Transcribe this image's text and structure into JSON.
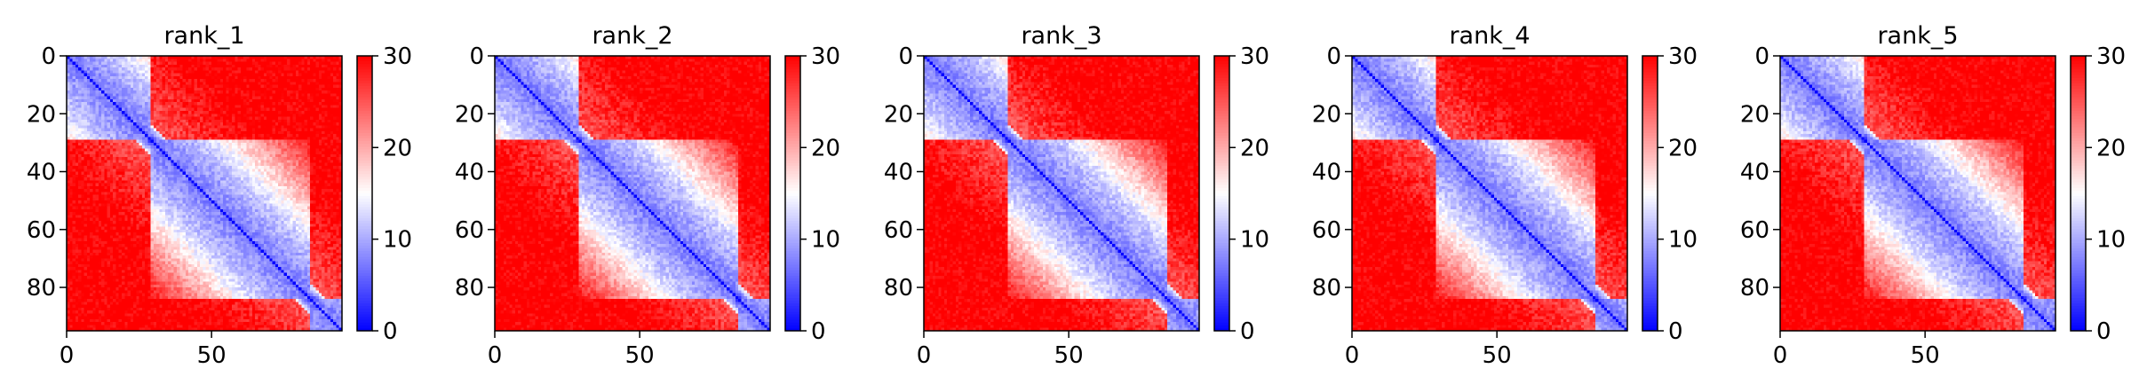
{
  "figure": {
    "background": "#ffffff"
  },
  "colormap": {
    "name": "bwr",
    "low": "#0000ff",
    "mid": "#ffffff",
    "high": "#ff0000"
  },
  "chart_data": [
    {
      "type": "heatmap",
      "title": "rank_1",
      "n": 95,
      "xticks": [
        0,
        50
      ],
      "yticks": [
        0,
        20,
        40,
        60,
        80
      ],
      "colorbar": {
        "min": 0,
        "max": 30,
        "ticks": [
          0,
          10,
          20,
          30
        ]
      },
      "domains": [
        [
          0,
          29
        ],
        [
          29,
          84
        ],
        [
          84,
          95
        ]
      ],
      "intra_distance": 5,
      "inter_distance": 28
    },
    {
      "type": "heatmap",
      "title": "rank_2",
      "n": 95,
      "xticks": [
        0,
        50
      ],
      "yticks": [
        0,
        20,
        40,
        60,
        80
      ],
      "colorbar": {
        "min": 0,
        "max": 30,
        "ticks": [
          0,
          10,
          20,
          30
        ]
      },
      "domains": [
        [
          0,
          29
        ],
        [
          29,
          84
        ],
        [
          84,
          95
        ]
      ],
      "intra_distance": 5,
      "inter_distance": 28
    },
    {
      "type": "heatmap",
      "title": "rank_3",
      "n": 95,
      "xticks": [
        0,
        50
      ],
      "yticks": [
        0,
        20,
        40,
        60,
        80
      ],
      "colorbar": {
        "min": 0,
        "max": 30,
        "ticks": [
          0,
          10,
          20,
          30
        ]
      },
      "domains": [
        [
          0,
          29
        ],
        [
          29,
          84
        ],
        [
          84,
          95
        ]
      ],
      "intra_distance": 5,
      "inter_distance": 28
    },
    {
      "type": "heatmap",
      "title": "rank_4",
      "n": 95,
      "xticks": [
        0,
        50
      ],
      "yticks": [
        0,
        20,
        40,
        60,
        80
      ],
      "colorbar": {
        "min": 0,
        "max": 30,
        "ticks": [
          0,
          10,
          20,
          30
        ]
      },
      "domains": [
        [
          0,
          29
        ],
        [
          29,
          84
        ],
        [
          84,
          95
        ]
      ],
      "intra_distance": 5,
      "inter_distance": 28
    },
    {
      "type": "heatmap",
      "title": "rank_5",
      "n": 95,
      "xticks": [
        0,
        50
      ],
      "yticks": [
        0,
        20,
        40,
        60,
        80
      ],
      "colorbar": {
        "min": 0,
        "max": 30,
        "ticks": [
          0,
          10,
          20,
          30
        ]
      },
      "domains": [
        [
          0,
          29
        ],
        [
          29,
          84
        ],
        [
          84,
          95
        ]
      ],
      "intra_distance": 5,
      "inter_distance": 28
    }
  ]
}
